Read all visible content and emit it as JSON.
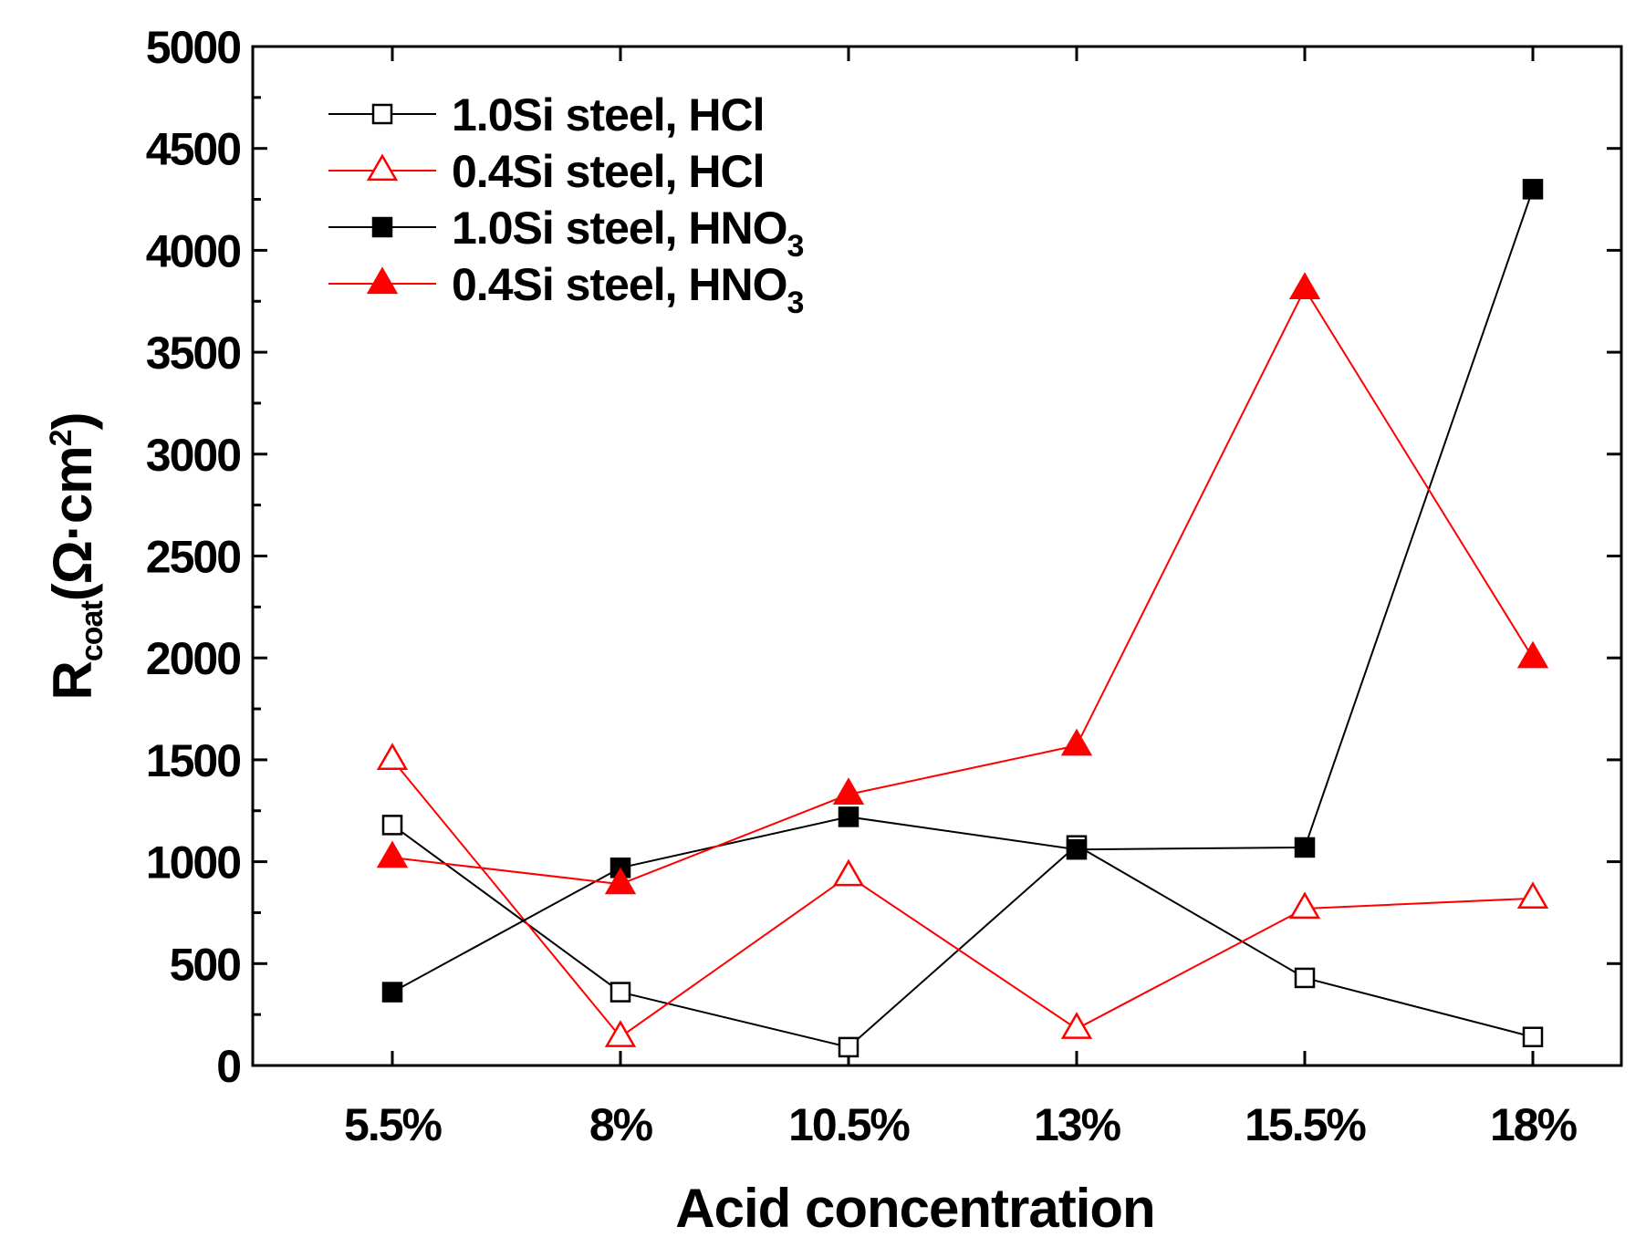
{
  "chart_data": {
    "type": "line",
    "title": "",
    "xlabel": "Acid concentration",
    "ylabel": {
      "main": "R",
      "subscript": "coat",
      "unit_open": "(",
      "unit_omega": "Ω",
      "unit_dot": "·",
      "unit_cm": "cm",
      "unit_sup": "2",
      "unit_close": ")"
    },
    "categories": [
      "5.5%",
      "8%",
      "10.5%",
      "13%",
      "15.5%",
      "18%"
    ],
    "ylim": [
      0,
      5000
    ],
    "yticks": [
      0,
      500,
      1000,
      1500,
      2000,
      2500,
      3000,
      3500,
      4000,
      4500,
      5000
    ],
    "grid": false,
    "legend_position": "top-left",
    "series": [
      {
        "name": "1.0Si steel, HCl",
        "label_text": "1.0Si steel, HCl",
        "label_sub": "",
        "color": "#000000",
        "marker": "square-open",
        "values": [
          1180,
          360,
          90,
          1080,
          430,
          140
        ]
      },
      {
        "name": "0.4Si steel, HCl",
        "label_text": "0.4Si steel, HCl",
        "label_sub": "",
        "color": "#ff0000",
        "marker": "triangle-open",
        "values": [
          1500,
          140,
          930,
          180,
          770,
          820
        ]
      },
      {
        "name": "1.0Si steel, HNO3",
        "label_text": "1.0Si steel, HNO",
        "label_sub": "3",
        "color": "#000000",
        "marker": "square-filled",
        "values": [
          360,
          970,
          1220,
          1060,
          1070,
          4300
        ]
      },
      {
        "name": "0.4Si steel, HNO3",
        "label_text": "0.4Si steel, HNO",
        "label_sub": "3",
        "color": "#ff0000",
        "marker": "triangle-filled",
        "values": [
          1020,
          890,
          1330,
          1570,
          3810,
          2000
        ]
      }
    ]
  }
}
